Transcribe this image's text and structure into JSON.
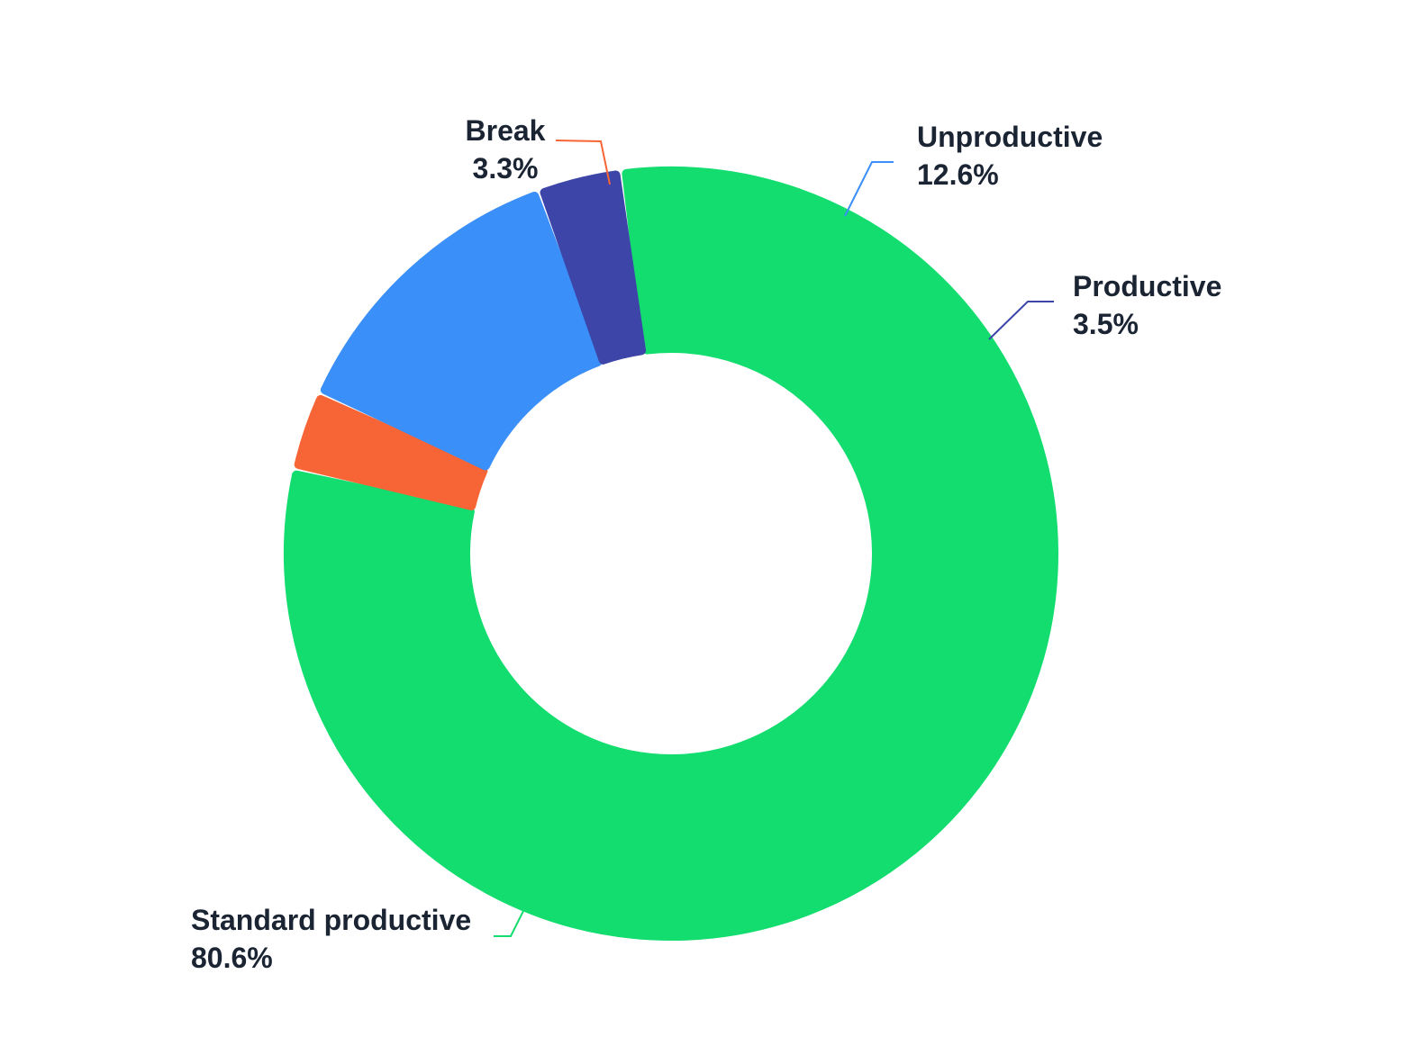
{
  "chart_data": {
    "type": "pie",
    "variant": "donut",
    "slices": [
      {
        "label": "Standard productive",
        "value": 80.6,
        "display": "80.6%",
        "color": "#12dd6e"
      },
      {
        "label": "Break",
        "value": 3.3,
        "display": "3.3%",
        "color": "#f76536"
      },
      {
        "label": "Unproductive",
        "value": 12.6,
        "display": "12.6%",
        "color": "#3a8ff8"
      },
      {
        "label": "Productive",
        "value": 3.5,
        "display": "3.5%",
        "color": "#3d45a8"
      }
    ],
    "legend": "none",
    "data_labels": "outside with leader lines"
  }
}
